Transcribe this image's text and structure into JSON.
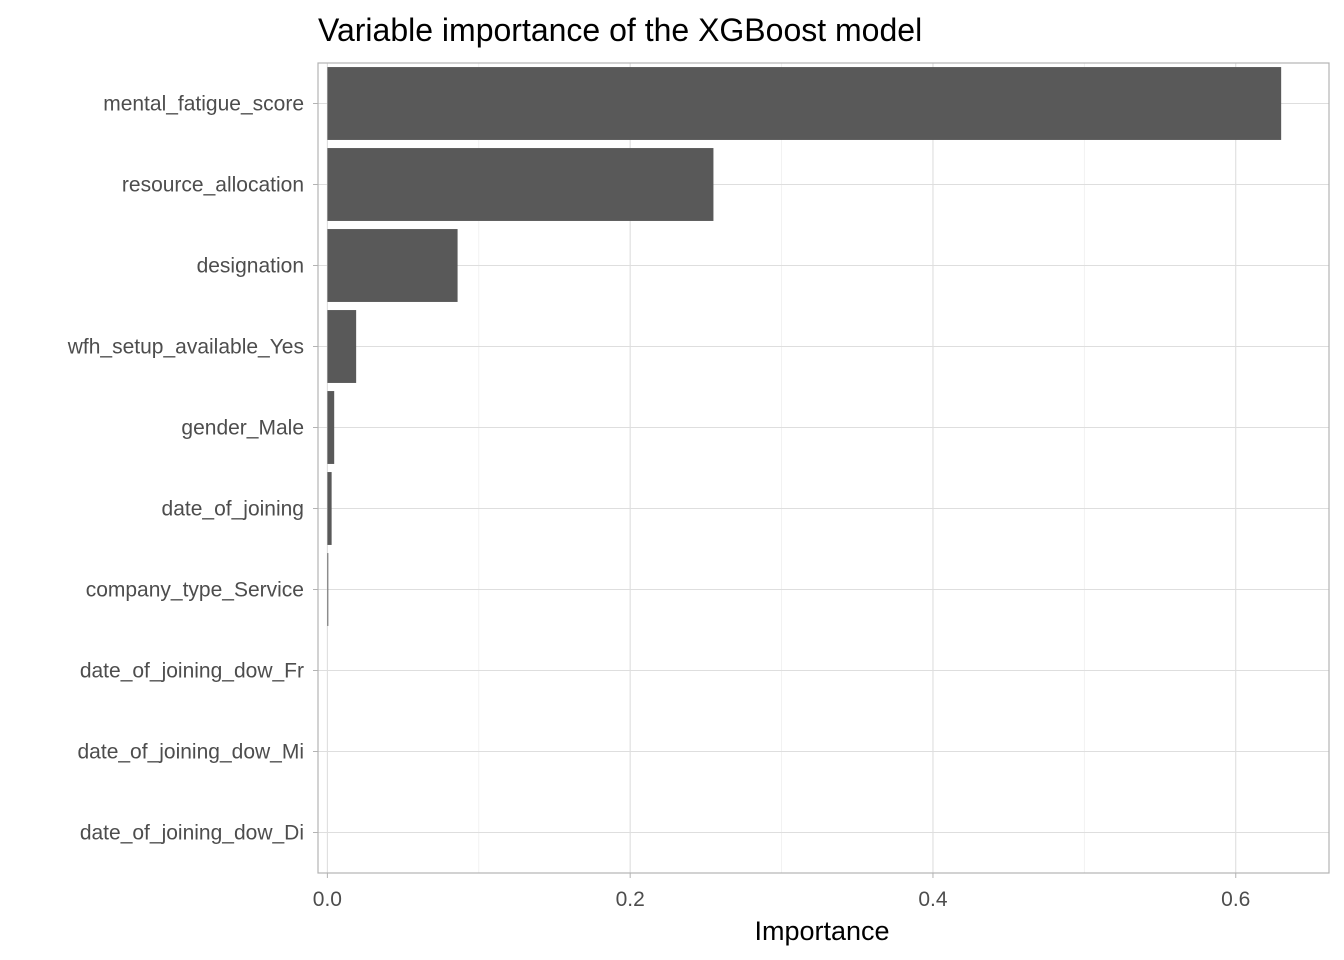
{
  "chart_data": {
    "type": "bar",
    "orientation": "horizontal",
    "title": "Variable importance of the XGBoost model",
    "xlabel": "Importance",
    "ylabel": "",
    "xlim": [
      -0.0062,
      0.6616
    ],
    "x_ticks": [
      "0.0",
      "0.2",
      "0.4",
      "0.6"
    ],
    "x_tick_values": [
      0.0,
      0.2,
      0.4,
      0.6
    ],
    "grid": true,
    "legend": "none",
    "bar_color": "#595959",
    "categories": [
      "mental_fatigue_score",
      "resource_allocation",
      "designation",
      "wfh_setup_available_Yes",
      "gender_Male",
      "date_of_joining",
      "company_type_Service",
      "date_of_joining_dow_Fr",
      "date_of_joining_dow_Mi",
      "date_of_joining_dow_Di"
    ],
    "values": [
      0.63,
      0.255,
      0.086,
      0.019,
      0.0045,
      0.0028,
      0.0006,
      0.0,
      0.0,
      0.0
    ]
  }
}
